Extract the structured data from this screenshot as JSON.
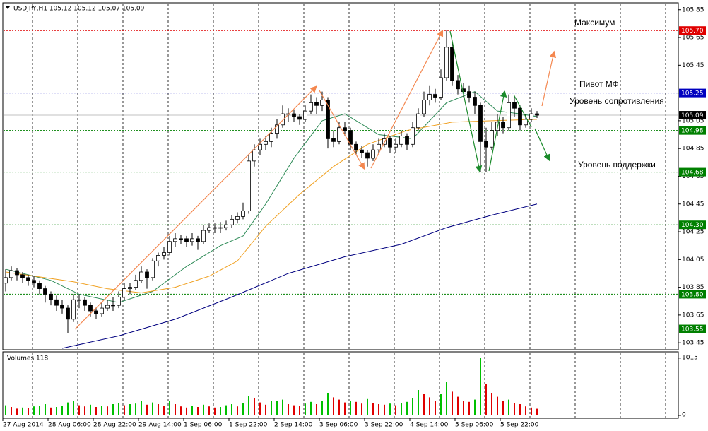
{
  "chart_data": {
    "type": "candlestick",
    "title": "USDJPY,H1  105.12 105.12 105.07 105.09",
    "volume_title": "Volumes 118",
    "ylim": [
      103.4,
      105.92
    ],
    "yticks": [
      103.45,
      103.65,
      103.85,
      104.05,
      104.25,
      104.45,
      104.65,
      104.85,
      105.05,
      105.25,
      105.45,
      105.65,
      105.85
    ],
    "volume_ylim": [
      0,
      1100
    ],
    "volume_yticks": [
      0,
      1015
    ],
    "categories": [
      "27 Aug 2014",
      "28 Aug 06:00",
      "28 Aug 22:00",
      "29 Aug 14:00",
      "1 Sep 06:00",
      "1 Sep 22:00",
      "2 Sep 14:00",
      "3 Sep 06:00",
      "3 Sep 22:00",
      "4 Sep 14:00",
      "5 Sep 06:00",
      "5 Sep 22:00"
    ],
    "bull_color": "#ffffff",
    "bear_color": "#000000",
    "volume_up_color": "#00c000",
    "volume_down_color": "#e00000",
    "ohlc": [
      [
        103.88,
        103.98,
        103.82,
        103.92
      ],
      [
        103.92,
        104.0,
        103.9,
        103.97
      ],
      [
        103.97,
        103.99,
        103.9,
        103.94
      ],
      [
        103.94,
        103.96,
        103.88,
        103.92
      ],
      [
        103.92,
        103.94,
        103.86,
        103.9
      ],
      [
        103.9,
        103.93,
        103.85,
        103.88
      ],
      [
        103.88,
        103.9,
        103.8,
        103.84
      ],
      [
        103.84,
        103.86,
        103.74,
        103.8
      ],
      [
        103.8,
        103.82,
        103.72,
        103.76
      ],
      [
        103.76,
        103.79,
        103.68,
        103.72
      ],
      [
        103.72,
        103.76,
        103.66,
        103.7
      ],
      [
        103.7,
        103.72,
        103.52,
        103.62
      ],
      [
        103.62,
        103.8,
        103.6,
        103.76
      ],
      [
        103.76,
        103.8,
        103.7,
        103.76
      ],
      [
        103.76,
        103.78,
        103.68,
        103.72
      ],
      [
        103.72,
        103.74,
        103.64,
        103.68
      ],
      [
        103.68,
        103.7,
        103.62,
        103.66
      ],
      [
        103.66,
        103.74,
        103.64,
        103.7
      ],
      [
        103.7,
        103.76,
        103.68,
        103.72
      ],
      [
        103.72,
        103.78,
        103.68,
        103.72
      ],
      [
        103.72,
        103.82,
        103.7,
        103.78
      ],
      [
        103.78,
        103.88,
        103.76,
        103.84
      ],
      [
        103.84,
        103.88,
        103.8,
        103.85
      ],
      [
        103.85,
        103.94,
        103.83,
        103.9
      ],
      [
        103.9,
        104.0,
        103.88,
        103.96
      ],
      [
        103.96,
        103.98,
        103.84,
        103.92
      ],
      [
        103.92,
        104.06,
        103.9,
        104.04
      ],
      [
        104.04,
        104.1,
        104.0,
        104.08
      ],
      [
        104.08,
        104.14,
        104.05,
        104.1
      ],
      [
        104.1,
        104.22,
        104.08,
        104.18
      ],
      [
        104.18,
        104.24,
        104.14,
        104.2
      ],
      [
        104.2,
        104.23,
        104.16,
        104.2
      ],
      [
        104.2,
        104.22,
        104.14,
        104.18
      ],
      [
        104.18,
        104.24,
        104.15,
        104.2
      ],
      [
        104.2,
        104.22,
        104.12,
        104.18
      ],
      [
        104.18,
        104.3,
        104.16,
        104.26
      ],
      [
        104.26,
        104.31,
        104.24,
        104.28
      ],
      [
        104.28,
        104.31,
        104.24,
        104.28
      ],
      [
        104.28,
        104.32,
        104.24,
        104.28
      ],
      [
        104.28,
        104.33,
        104.26,
        104.3
      ],
      [
        104.3,
        104.37,
        104.28,
        104.34
      ],
      [
        104.34,
        104.39,
        104.31,
        104.36
      ],
      [
        104.36,
        104.46,
        104.34,
        104.4
      ],
      [
        104.4,
        104.8,
        104.38,
        104.76
      ],
      [
        104.76,
        104.88,
        104.72,
        104.84
      ],
      [
        104.84,
        104.92,
        104.8,
        104.88
      ],
      [
        104.88,
        104.94,
        104.84,
        104.9
      ],
      [
        104.9,
        105.0,
        104.86,
        104.96
      ],
      [
        104.96,
        105.06,
        104.92,
        105.02
      ],
      [
        105.02,
        105.16,
        105.0,
        105.1
      ],
      [
        105.1,
        105.14,
        105.04,
        105.1
      ],
      [
        105.1,
        105.13,
        105.04,
        105.08
      ],
      [
        105.08,
        105.1,
        105.02,
        105.06
      ],
      [
        105.06,
        105.16,
        105.04,
        105.12
      ],
      [
        105.12,
        105.24,
        105.1,
        105.18
      ],
      [
        105.18,
        105.22,
        105.1,
        105.16
      ],
      [
        105.16,
        105.26,
        105.12,
        105.2
      ],
      [
        105.2,
        105.22,
        104.85,
        104.92
      ],
      [
        104.92,
        104.98,
        104.86,
        104.9
      ],
      [
        104.9,
        105.04,
        104.88,
        105.0
      ],
      [
        105.0,
        105.04,
        104.94,
        104.98
      ],
      [
        104.98,
        105.0,
        104.84,
        104.88
      ],
      [
        104.88,
        104.9,
        104.8,
        104.84
      ],
      [
        104.84,
        104.87,
        104.78,
        104.82
      ],
      [
        104.82,
        104.84,
        104.72,
        104.78
      ],
      [
        104.78,
        104.88,
        104.76,
        104.84
      ],
      [
        104.84,
        104.92,
        104.82,
        104.88
      ],
      [
        104.88,
        104.96,
        104.86,
        104.92
      ],
      [
        104.92,
        104.94,
        104.82,
        104.86
      ],
      [
        104.86,
        104.92,
        104.82,
        104.88
      ],
      [
        104.88,
        104.98,
        104.86,
        104.94
      ],
      [
        104.94,
        104.96,
        104.84,
        104.88
      ],
      [
        104.88,
        105.04,
        104.86,
        105.0
      ],
      [
        105.0,
        105.14,
        104.98,
        105.1
      ],
      [
        105.1,
        105.26,
        105.08,
        105.2
      ],
      [
        105.2,
        105.3,
        105.16,
        105.24
      ],
      [
        105.24,
        105.28,
        105.18,
        105.22
      ],
      [
        105.22,
        105.42,
        105.2,
        105.36
      ],
      [
        105.36,
        105.7,
        105.34,
        105.58
      ],
      [
        105.58,
        105.62,
        105.3,
        105.34
      ],
      [
        105.34,
        105.38,
        105.24,
        105.28
      ],
      [
        105.28,
        105.32,
        105.22,
        105.26
      ],
      [
        105.26,
        105.3,
        105.18,
        105.22
      ],
      [
        105.22,
        105.26,
        105.1,
        105.16
      ],
      [
        105.16,
        105.18,
        104.68,
        104.9
      ],
      [
        104.9,
        105.0,
        104.68,
        104.86
      ],
      [
        104.86,
        105.04,
        104.84,
        104.98
      ],
      [
        104.98,
        105.1,
        104.94,
        105.04
      ],
      [
        105.04,
        105.08,
        104.96,
        105.0
      ],
      [
        105.0,
        105.24,
        104.98,
        105.18
      ],
      [
        105.18,
        105.22,
        105.08,
        105.14
      ],
      [
        105.14,
        105.16,
        104.98,
        105.02
      ],
      [
        105.02,
        105.1,
        105.0,
        105.06
      ],
      [
        105.06,
        105.14,
        105.04,
        105.1
      ],
      [
        105.1,
        105.12,
        105.07,
        105.09
      ]
    ],
    "volumes": [
      180,
      150,
      120,
      140,
      130,
      160,
      170,
      200,
      140,
      150,
      170,
      230,
      250,
      180,
      160,
      190,
      150,
      170,
      160,
      200,
      220,
      180,
      200,
      210,
      260,
      190,
      230,
      200,
      170,
      250,
      200,
      160,
      140,
      170,
      150,
      190,
      160,
      140,
      150,
      180,
      200,
      160,
      220,
      350,
      300,
      230,
      190,
      250,
      260,
      280,
      200,
      180,
      170,
      210,
      240,
      200,
      260,
      400,
      320,
      280,
      230,
      260,
      240,
      210,
      290,
      220,
      200,
      190,
      210,
      180,
      220,
      240,
      300,
      450,
      380,
      320,
      260,
      380,
      600,
      420,
      330,
      260,
      240,
      280,
      1015,
      550,
      400,
      330,
      260,
      280,
      220,
      200,
      160,
      140,
      118
    ],
    "ma_lines": [
      {
        "color": "#2e8b57",
        "bars": [
          0,
          8,
          13,
          20,
          26,
          32,
          38,
          42,
          46,
          51,
          56,
          60,
          66,
          72,
          78,
          83,
          87,
          91,
          94
        ],
        "values": [
          103.98,
          103.9,
          103.8,
          103.74,
          103.82,
          104.0,
          104.15,
          104.22,
          104.45,
          104.78,
          105.05,
          105.1,
          104.95,
          104.92,
          105.18,
          105.26,
          105.12,
          105.1,
          105.08
        ]
      },
      {
        "color": "#f0a020",
        "bars": [
          0,
          12,
          18,
          24,
          30,
          36,
          41,
          46,
          52,
          58,
          64,
          71,
          79,
          86,
          94
        ],
        "values": [
          103.96,
          103.89,
          103.84,
          103.81,
          103.85,
          103.93,
          104.04,
          104.29,
          104.52,
          104.72,
          104.88,
          104.98,
          105.04,
          105.05,
          105.06
        ]
      },
      {
        "color": "#000080",
        "bars": [
          10,
          20,
          30,
          40,
          50,
          60,
          70,
          78,
          86,
          94
        ],
        "values": [
          103.41,
          103.5,
          103.62,
          103.78,
          103.95,
          104.07,
          104.16,
          104.28,
          104.37,
          104.45
        ]
      }
    ],
    "levels": [
      {
        "value": 105.7,
        "label": "105.70",
        "color": "#e00000"
      },
      {
        "value": 105.25,
        "label": "105.25",
        "color": "#0000c0"
      },
      {
        "value": 105.09,
        "label": "105.09",
        "color": "#000000"
      },
      {
        "value": 104.98,
        "label": "104.98",
        "color": "#008000"
      },
      {
        "value": 104.68,
        "label": "104.68",
        "color": "#008000"
      },
      {
        "value": 104.3,
        "label": "104.30",
        "color": "#008000"
      },
      {
        "value": 103.8,
        "label": "103.80",
        "color": "#008000"
      },
      {
        "value": 103.55,
        "label": "103.55",
        "color": "#008000"
      }
    ],
    "annotations": [
      "Максимум",
      "Пивот МФ",
      "Уровень сопротивления",
      "Уровень поддержки"
    ]
  }
}
